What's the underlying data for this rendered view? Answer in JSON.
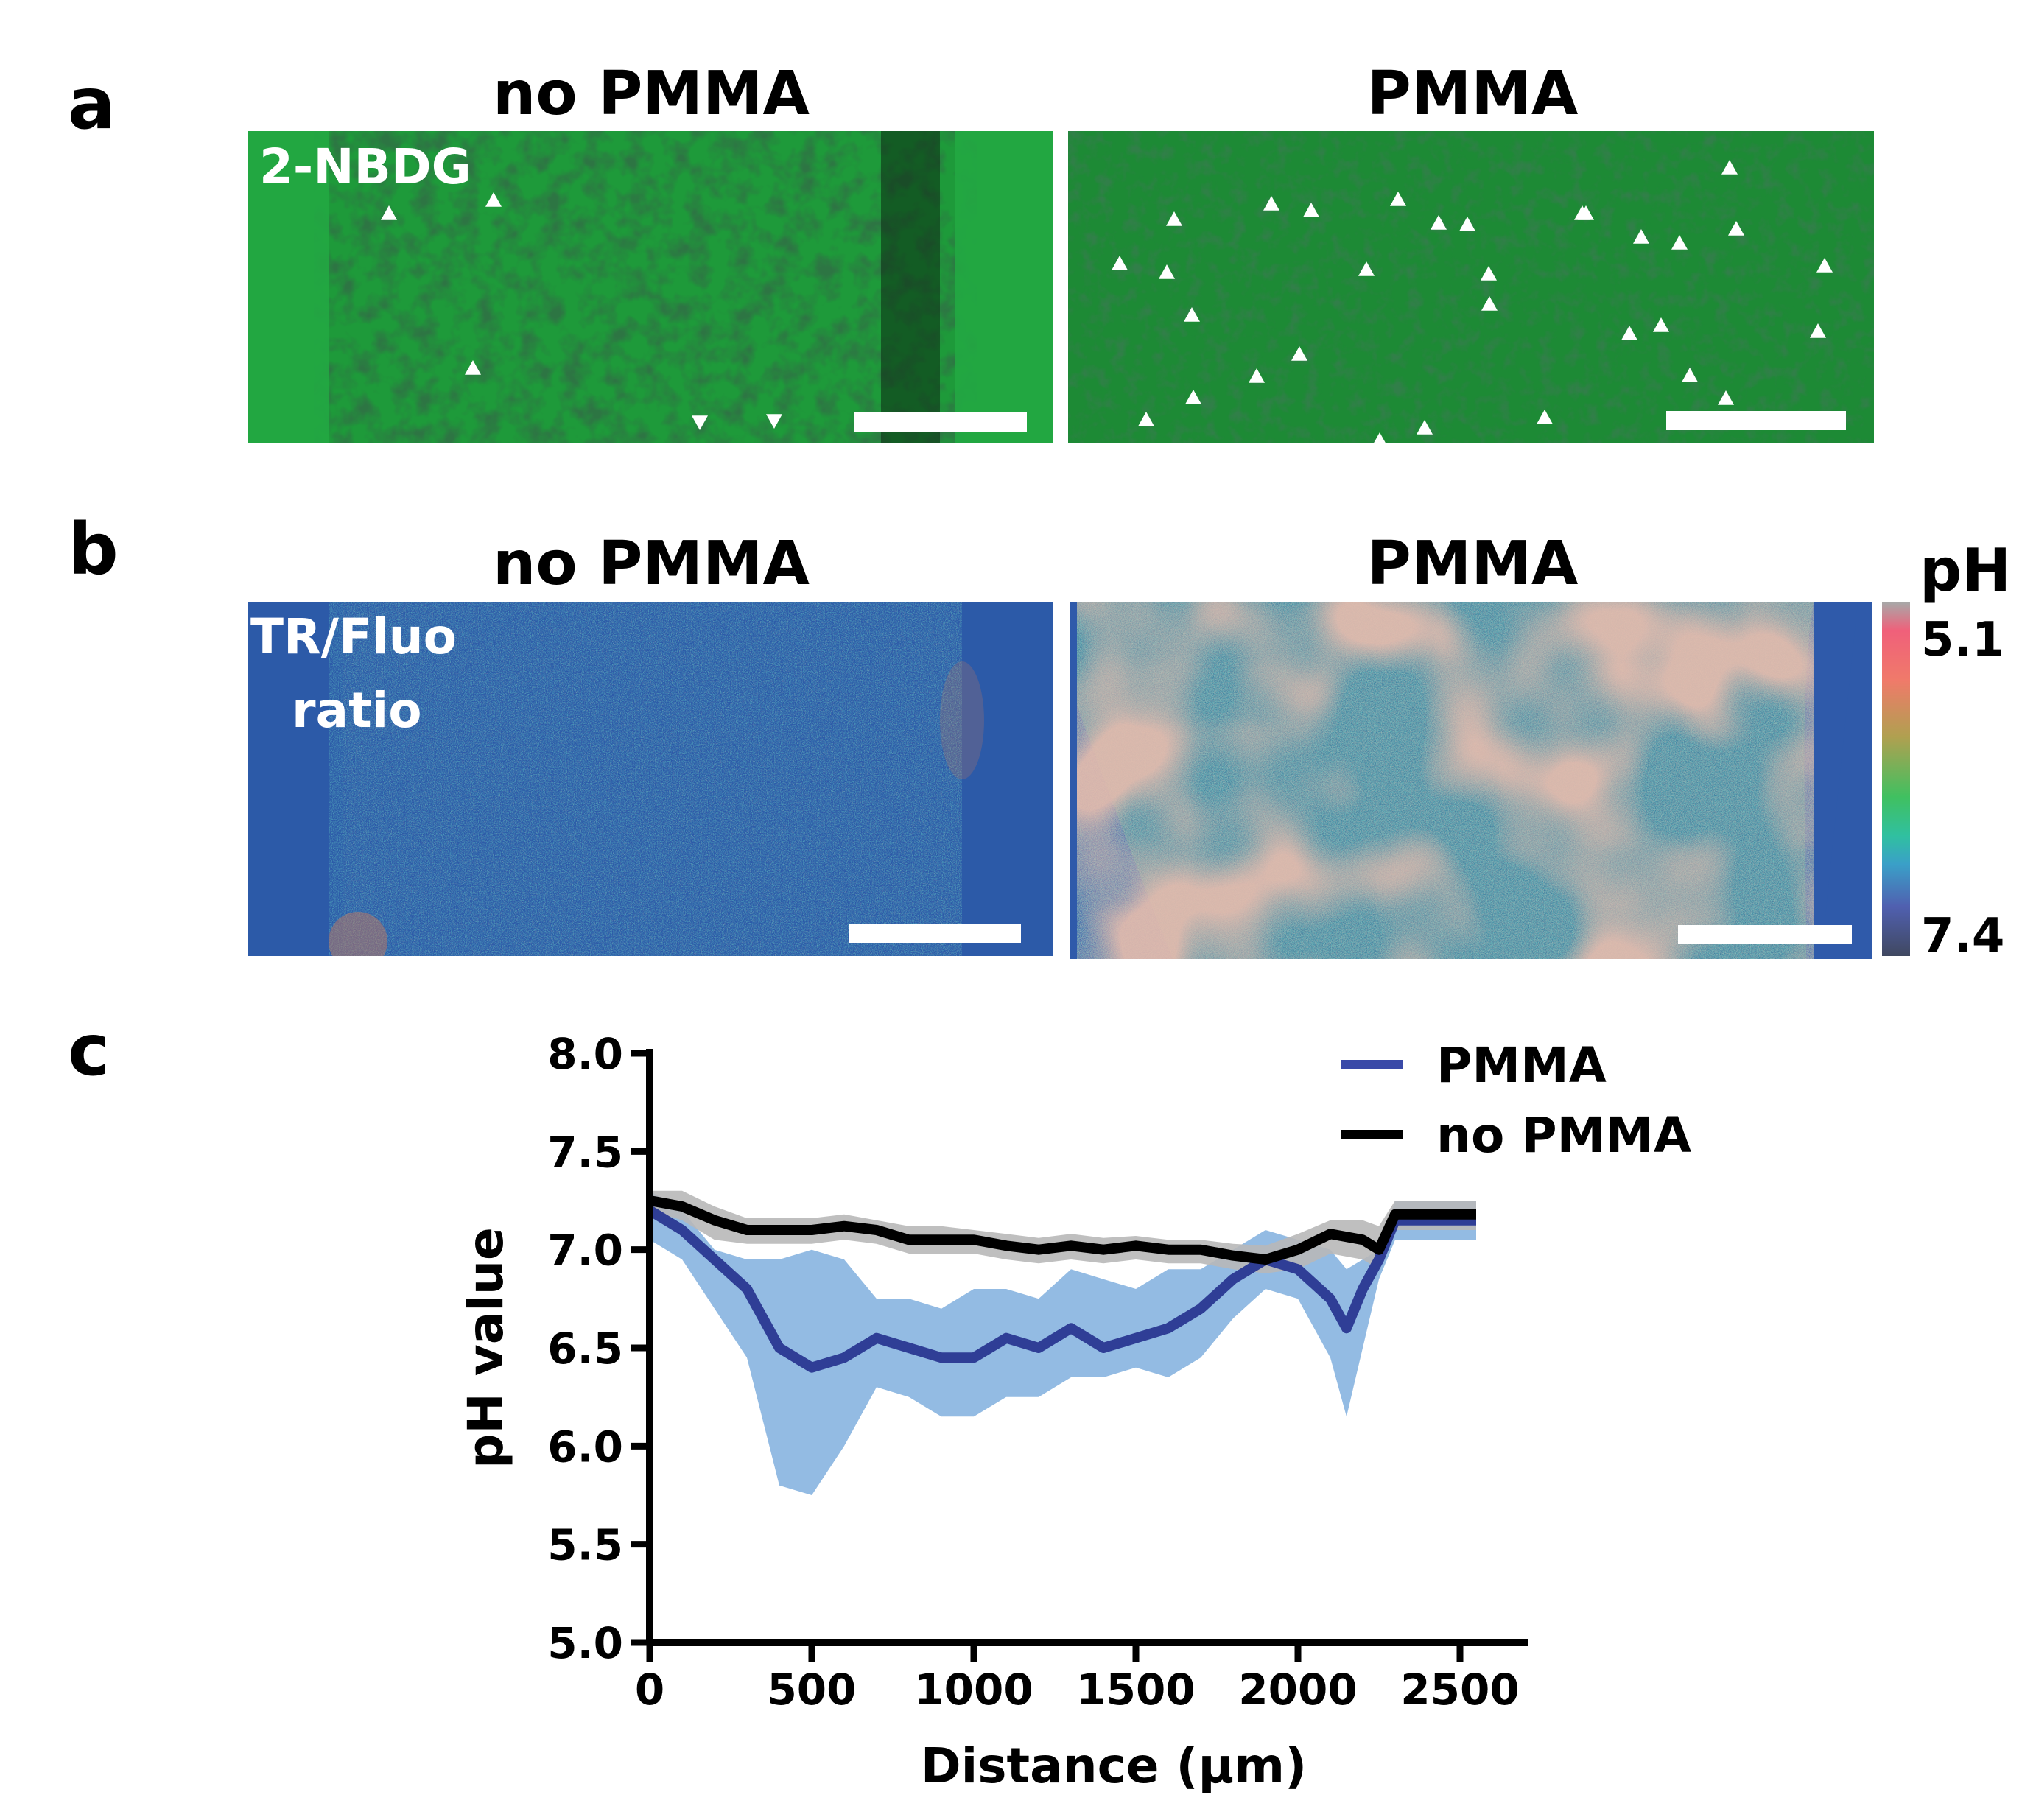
{
  "panels": {
    "a": {
      "label": "a",
      "left_title": "no PMMA",
      "right_title": "PMMA",
      "overlay_text": "2-NBDG",
      "colors": {
        "bg": "#1f9a3a",
        "dark": "#0d3a18",
        "marker": "#ffffff"
      }
    },
    "b": {
      "label": "b",
      "left_title": "no PMMA",
      "right_title": "PMMA",
      "overlay_line1": "TR/Fluo",
      "overlay_line2": "ratio",
      "colorbar": {
        "title": "pH",
        "top_label": "5.1",
        "bottom_label": "7.4"
      },
      "colors": {
        "bg": "#2d5aa8",
        "teal": "#1e8e8c",
        "warm": "#c47a6a"
      }
    },
    "c": {
      "label": "c"
    }
  },
  "chart_data": {
    "type": "line",
    "xlabel": "Distance (µm)",
    "ylabel": "pH value",
    "xlim": [
      0,
      2700
    ],
    "ylim": [
      5.0,
      8.0
    ],
    "xticks": [
      0,
      500,
      1000,
      1500,
      2000,
      2500
    ],
    "xtick_labels": [
      "0",
      "500",
      "1000",
      "1500",
      "2000",
      "2500"
    ],
    "yticks": [
      5.0,
      5.5,
      6.0,
      6.5,
      7.0,
      7.5,
      8.0
    ],
    "ytick_labels": [
      "5.0",
      "5.5",
      "6.0",
      "6.5",
      "7.0",
      "7.5",
      "8.0"
    ],
    "legend": [
      "PMMA",
      "no PMMA"
    ],
    "legend_position": "top-right",
    "series": [
      {
        "name": "PMMA",
        "color": "#2f3e96",
        "band_color": "#8db7e2",
        "x": [
          0,
          100,
          200,
          300,
          400,
          500,
          600,
          700,
          800,
          900,
          1000,
          1100,
          1200,
          1300,
          1400,
          1500,
          1600,
          1700,
          1800,
          1900,
          2000,
          2100,
          2150,
          2200,
          2250,
          2300,
          2400,
          2500,
          2550
        ],
        "mean": [
          7.2,
          7.1,
          6.95,
          6.8,
          6.5,
          6.4,
          6.45,
          6.55,
          6.5,
          6.45,
          6.45,
          6.55,
          6.5,
          6.6,
          6.5,
          6.55,
          6.6,
          6.7,
          6.85,
          6.95,
          6.9,
          6.75,
          6.6,
          6.8,
          6.95,
          7.15,
          7.15,
          7.15,
          7.15
        ],
        "upper": [
          7.3,
          7.2,
          7.0,
          6.95,
          6.95,
          7.0,
          6.95,
          6.75,
          6.75,
          6.7,
          6.8,
          6.8,
          6.75,
          6.9,
          6.85,
          6.8,
          6.9,
          6.9,
          7.0,
          7.1,
          7.05,
          7.0,
          6.9,
          6.95,
          7.0,
          7.25,
          7.25,
          7.25,
          7.25
        ],
        "lower": [
          7.05,
          6.95,
          6.7,
          6.45,
          5.8,
          5.75,
          6.0,
          6.3,
          6.25,
          6.15,
          6.15,
          6.25,
          6.25,
          6.35,
          6.35,
          6.4,
          6.35,
          6.45,
          6.65,
          6.8,
          6.75,
          6.45,
          6.15,
          6.5,
          6.85,
          7.05,
          7.05,
          7.05,
          7.05
        ]
      },
      {
        "name": "no PMMA",
        "color": "#000000",
        "band_color": "#b8b8b8",
        "x": [
          0,
          100,
          200,
          300,
          400,
          500,
          600,
          700,
          800,
          900,
          1000,
          1100,
          1200,
          1300,
          1400,
          1500,
          1600,
          1700,
          1800,
          1900,
          2000,
          2100,
          2200,
          2250,
          2300,
          2400,
          2500,
          2550
        ],
        "mean": [
          7.25,
          7.22,
          7.15,
          7.1,
          7.1,
          7.1,
          7.12,
          7.1,
          7.05,
          7.05,
          7.05,
          7.02,
          7.0,
          7.02,
          7.0,
          7.02,
          7.0,
          7.0,
          6.97,
          6.95,
          7.0,
          7.08,
          7.05,
          7.0,
          7.18,
          7.18,
          7.18,
          7.18
        ],
        "upper": [
          7.3,
          7.3,
          7.22,
          7.16,
          7.16,
          7.16,
          7.18,
          7.15,
          7.12,
          7.12,
          7.1,
          7.08,
          7.06,
          7.08,
          7.06,
          7.07,
          7.05,
          7.05,
          7.03,
          7.02,
          7.08,
          7.15,
          7.15,
          7.12,
          7.25,
          7.25,
          7.25,
          7.25
        ],
        "lower": [
          7.2,
          7.15,
          7.05,
          7.03,
          7.03,
          7.03,
          7.05,
          7.03,
          6.98,
          6.98,
          6.98,
          6.95,
          6.93,
          6.95,
          6.93,
          6.95,
          6.93,
          6.93,
          6.9,
          6.88,
          6.9,
          6.98,
          6.95,
          6.9,
          7.1,
          7.1,
          7.1,
          7.1
        ]
      }
    ]
  }
}
